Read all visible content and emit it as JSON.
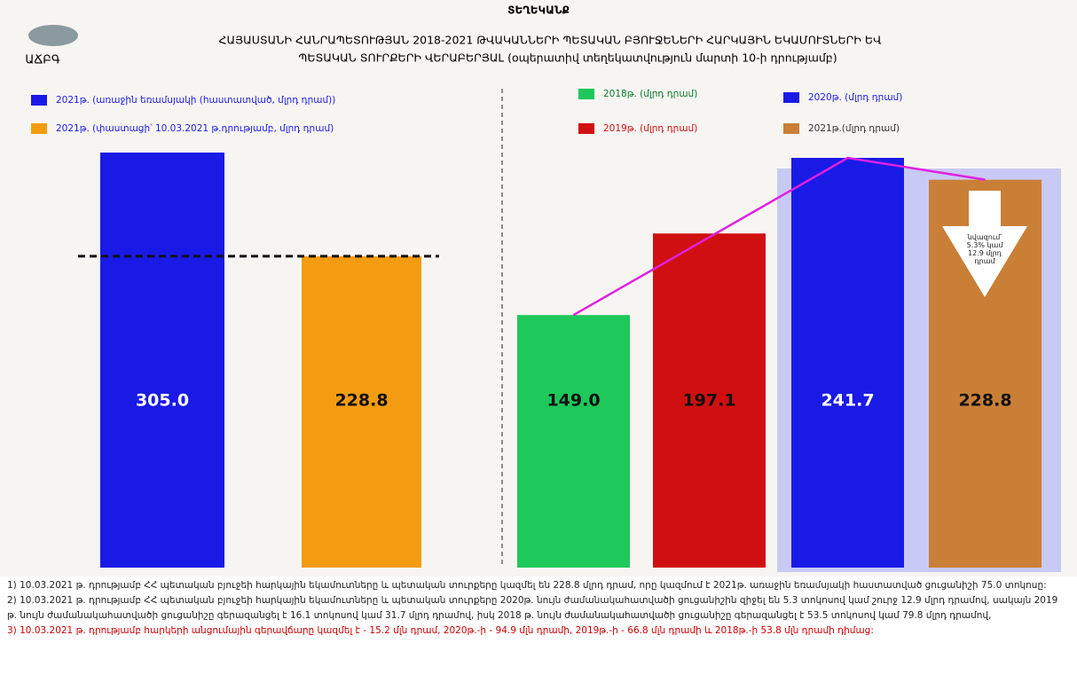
{
  "header": {
    "title": "ՏԵՂԵԿԱՆՔ",
    "subtitle_line1": "ՀԱՅԱՍՏԱՆԻ ՀԱՆՐԱՊԵՏՈՒԹՅԱՆ 2018-2021 ԹՎԱԿԱՆՆԵՐԻ ՊԵՏԱԿԱՆ ԲՅՈՒՋԵՆԵՐԻ ՀԱՐԿԱՅԻՆ ԵԿԱՄՈՒՏՆԵՐԻ ԵՎ",
    "subtitle_line2": "ՊԵՏԱԿԱՆ ՏՈՒՐՔԵՐԻ ՎԵՐԱԲԵՐՅԱԼ (օպերատիվ տեղեկատվություն մարտի 10-ի դրությամբ)",
    "logo_text": "ԱՃԲԳ"
  },
  "chart_data": [
    {
      "type": "bar",
      "categories": [
        "2021թ. (առաջին եռամսյակի (հաստատված, մլրդ դրամ))",
        "2021թ. (փաստացի՝ 10.03.2021 թ.դրությամբ, մլրդ դրամ)"
      ],
      "values": [
        305.0,
        228.8
      ],
      "value_labels": [
        "305.0",
        "228.8"
      ],
      "colors": [
        "#1a1ae6",
        "#f39c12"
      ]
    },
    {
      "type": "bar",
      "categories": [
        "2018թ. (մլրդ դրամ)",
        "2019թ. (մլրդ դրամ)",
        "2020թ. (մլրդ դրամ)",
        "2021թ.(մլրդ դրամ)"
      ],
      "values": [
        149.0,
        197.1,
        241.7,
        228.8
      ],
      "value_labels": [
        "149.0",
        "197.1",
        "241.7",
        "228.8"
      ],
      "colors": [
        "#1ec85a",
        "#d01010",
        "#1a1ae6",
        "#c97f36"
      ],
      "annotation": "նվազում՝ 5.3% կամ 12.9 մլրդ դրամ"
    }
  ],
  "notes": [
    "1) 10.03.2021 թ. դրությամբ ՀՀ պետական բյուջեի հարկային եկամուտները և պետական տուրքերը կազմել են 228.8 մլրդ դրամ, որը կազմում է 2021թ. առաջին եռամսյակի հաստատված ցուցանիշի 75.0 տոկոսը:",
    "2) 10.03.2021 թ. դրությամբ ՀՀ պետական բյուջեի հարկային եկամուտները և պետական տուրքերը 2020թ. նույն ժամանակահատվածի ցուցանիշին զիջել են 5.3 տոկոսով կամ շուրջ 12.9 մլրդ դրամով, սակայն 2019 թ. նույն ժամանակահատվածի ցուցանիշը գերազանցել է 16.1 տոկոսով կամ 31.7 մլրդ դրամով, իսկ 2018 թ. նույն ժամանակահատվածի ցուցանիշը գերազանցել է 53.5 տոկոսով կամ 79.8 մլրդ դրամով,",
    "3) 10.03.2021 թ. դրությամբ հարկերի անցումային գերավճարը կազմել է - 15.2 մլն դրամ, 2020թ.-ի - 94.9 մլն դրամի, 2019թ.-ի - 66.8 մլն դրամի և 2018թ.-ի 53.8 մլն դրամի դիմաց:"
  ]
}
